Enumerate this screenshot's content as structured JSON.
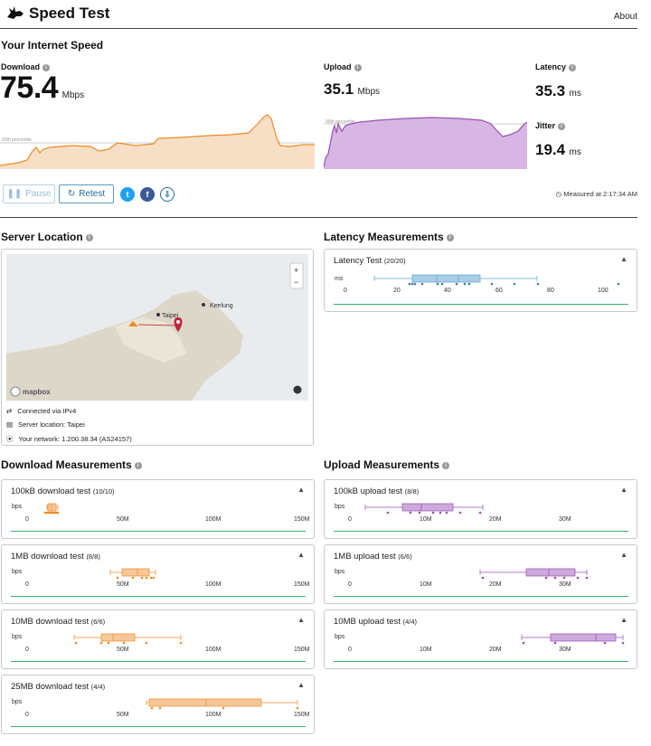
{
  "header": {
    "app_title": "Speed Test",
    "about_label": "About"
  },
  "speed": {
    "section_title": "Your Internet Speed",
    "download_label": "Download",
    "download_value": "75.4",
    "download_unit": "Mbps",
    "upload_label": "Upload",
    "upload_value": "35.1",
    "upload_unit": "Mbps",
    "latency_label": "Latency",
    "latency_value": "35.3",
    "latency_unit": "ms",
    "jitter_label": "Jitter",
    "jitter_value": "19.4",
    "jitter_unit": "ms",
    "percentile_label": "90th percentile",
    "measured_at": "Measured at 2:17:34 AM"
  },
  "controls": {
    "pause_label": "Pause",
    "retest_label": "Retest"
  },
  "colors": {
    "download": "#f08a24",
    "download_fill": "#f7c79a",
    "upload": "#9b4db5",
    "upload_fill": "#cda9dc",
    "latency": "#5fa2cf",
    "accent": "#1f6d98",
    "green": "#3bb273"
  },
  "server": {
    "section_title": "Server Location",
    "map_label_taipei": "Taipei",
    "map_label_keelung": "Keelung",
    "mapbox_label": "mapbox",
    "zoom_in": "+",
    "zoom_out": "−",
    "connected": "Connected via IPv4",
    "location": "Server location: Taipei",
    "network": "Your network: 1.200.38.34 (AS24157)"
  },
  "latency_measurements": {
    "section_title": "Latency Measurements",
    "card": {
      "title": "Latency Test",
      "count": "(20/20)",
      "unit": "ms",
      "ticks": [
        "0",
        "20",
        "40",
        "60",
        "80",
        "100"
      ]
    }
  },
  "download_measurements": {
    "section_title": "Download Measurements",
    "ticks": [
      "0",
      "50M",
      "100M",
      "150M"
    ],
    "unit": "bps",
    "cards": [
      {
        "title": "100kB download test",
        "count": "(10/10)"
      },
      {
        "title": "1MB download test",
        "count": "(8/8)"
      },
      {
        "title": "10MB download test",
        "count": "(6/6)"
      },
      {
        "title": "25MB download test",
        "count": "(4/4)"
      }
    ]
  },
  "upload_measurements": {
    "section_title": "Upload Measurements",
    "ticks": [
      "0",
      "10M",
      "20M",
      "30M"
    ],
    "unit": "bps",
    "cards": [
      {
        "title": "100kB upload test",
        "count": "(8/8)"
      },
      {
        "title": "1MB upload test",
        "count": "(6/6)"
      },
      {
        "title": "10MB upload test",
        "count": "(4/4)"
      }
    ]
  }
}
